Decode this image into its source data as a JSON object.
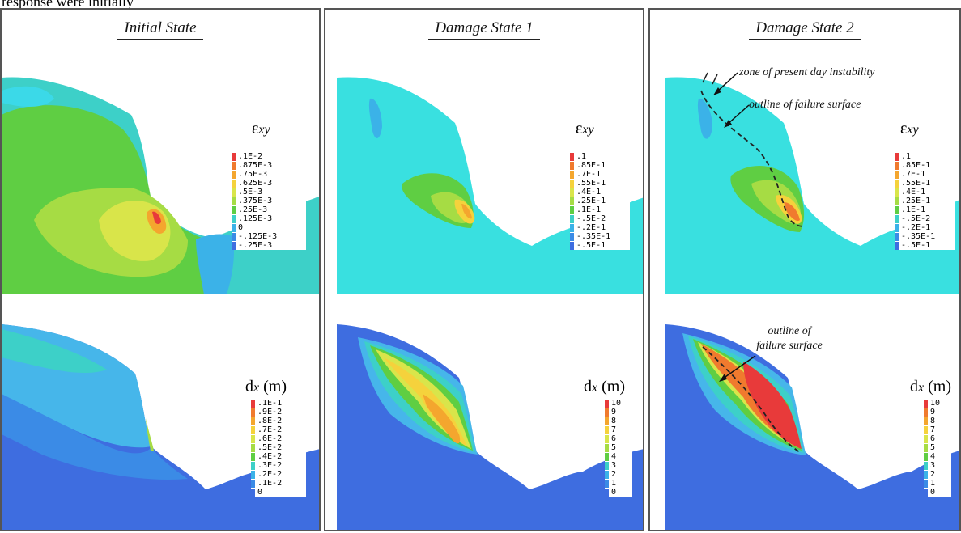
{
  "page_caption": "response were initially",
  "panels": [
    {
      "title": "Initial State",
      "strain_legend": {
        "symbol": "ε",
        "subscript": "xy",
        "unit": "",
        "entries": [
          ".1E-2",
          ".875E-3",
          ".75E-3",
          ".625E-3",
          ".5E-3",
          ".375E-3",
          ".25E-3",
          ".125E-3",
          "0",
          "-.125E-3",
          "-.25E-3"
        ]
      },
      "disp_legend": {
        "symbol": "d",
        "subscript": "x",
        "unit": "(m)",
        "entries": [
          ".1E-1",
          ".9E-2",
          ".8E-2",
          ".7E-2",
          ".6E-2",
          ".5E-2",
          ".4E-2",
          ".3E-2",
          ".2E-2",
          ".1E-2",
          "0"
        ]
      },
      "annotations": []
    },
    {
      "title": "Damage State 1",
      "strain_legend": {
        "symbol": "ε",
        "subscript": "xy",
        "unit": "",
        "entries": [
          ".1",
          ".85E-1",
          ".7E-1",
          ".55E-1",
          ".4E-1",
          ".25E-1",
          ".1E-1",
          "-.5E-2",
          "-.2E-1",
          "-.35E-1",
          "-.5E-1"
        ]
      },
      "disp_legend": {
        "symbol": "d",
        "subscript": "x",
        "unit": "(m)",
        "entries": [
          "10",
          "9",
          "8",
          "7",
          "6",
          "5",
          "4",
          "3",
          "2",
          "1",
          "0"
        ]
      },
      "annotations": []
    },
    {
      "title": "Damage State 2",
      "strain_legend": {
        "symbol": "ε",
        "subscript": "xy",
        "unit": "",
        "entries": [
          ".1",
          ".85E-1",
          ".7E-1",
          ".55E-1",
          ".4E-1",
          ".25E-1",
          ".1E-1",
          "-.5E-2",
          "-.2E-1",
          "-.35E-1",
          "-.5E-1"
        ]
      },
      "disp_legend": {
        "symbol": "d",
        "subscript": "x",
        "unit": "(m)",
        "entries": [
          "10",
          "9",
          "8",
          "7",
          "6",
          "5",
          "4",
          "3",
          "2",
          "1",
          "0"
        ]
      },
      "annotations": {
        "instability": "zone of present day instability",
        "failure_top": "outline of failure surface",
        "failure_bottom_line1": "outline of",
        "failure_bottom_line2": "failure surface"
      }
    }
  ],
  "colors": {
    "scale": [
      "#e83a3a",
      "#f07a2e",
      "#f4a62e",
      "#f5d23c",
      "#d9e54a",
      "#a6dc44",
      "#5fce43",
      "#3dd0c8",
      "#3bb2e8",
      "#3b8be6",
      "#3e6de0"
    ],
    "cyan_field": "#39e0e0",
    "blue_field": "#3f74e4",
    "light_blue_field": "#46b6ea"
  }
}
